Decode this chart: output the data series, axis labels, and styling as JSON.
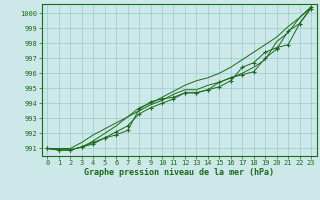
{
  "x": [
    0,
    1,
    2,
    3,
    4,
    5,
    6,
    7,
    8,
    9,
    10,
    11,
    12,
    13,
    14,
    15,
    16,
    17,
    18,
    19,
    20,
    21,
    22,
    23
  ],
  "line1": [
    991.0,
    990.9,
    990.9,
    991.1,
    991.3,
    991.7,
    991.9,
    992.2,
    993.6,
    994.1,
    994.3,
    994.4,
    994.7,
    994.7,
    994.9,
    995.4,
    995.7,
    995.9,
    996.1,
    997.0,
    997.6,
    998.8,
    999.3,
    1000.3
  ],
  "line2": [
    991.0,
    990.9,
    990.9,
    991.1,
    991.4,
    991.7,
    992.1,
    992.5,
    993.3,
    993.7,
    994.0,
    994.3,
    994.7,
    994.7,
    994.9,
    995.1,
    995.5,
    996.4,
    996.7,
    997.4,
    997.7,
    997.9,
    999.3,
    1000.4
  ],
  "line3": [
    991.0,
    990.9,
    990.9,
    991.1,
    991.5,
    992.0,
    992.5,
    993.1,
    993.5,
    993.9,
    994.2,
    994.6,
    994.9,
    994.9,
    995.2,
    995.4,
    995.7,
    996.0,
    996.4,
    996.9,
    998.1,
    998.7,
    999.7,
    1000.4
  ],
  "line4": [
    991.0,
    991.0,
    991.0,
    991.4,
    991.9,
    992.3,
    992.7,
    993.1,
    993.7,
    994.0,
    994.4,
    994.8,
    995.2,
    995.5,
    995.7,
    996.0,
    996.4,
    996.9,
    997.4,
    997.9,
    998.4,
    999.1,
    999.7,
    1000.4
  ],
  "ylim": [
    990.5,
    1000.6
  ],
  "yticks": [
    991,
    992,
    993,
    994,
    995,
    996,
    997,
    998,
    999,
    1000
  ],
  "xlim": [
    -0.5,
    23.5
  ],
  "xticks": [
    0,
    1,
    2,
    3,
    4,
    5,
    6,
    7,
    8,
    9,
    10,
    11,
    12,
    13,
    14,
    15,
    16,
    17,
    18,
    19,
    20,
    21,
    22,
    23
  ],
  "line_color": "#1a6b1a",
  "bg_color": "#cce8e8",
  "grid_color": "#99cccc",
  "xlabel": "Graphe pression niveau de la mer (hPa)",
  "marker": "+",
  "markersize": 3,
  "tick_fontsize": 5,
  "xlabel_fontsize": 6
}
